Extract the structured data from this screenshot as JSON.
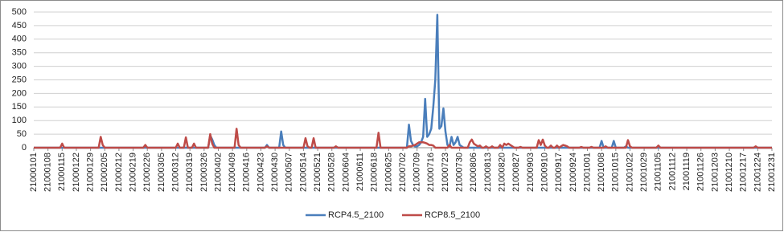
{
  "chart_data": {
    "type": "line",
    "categories": [
      "21000101",
      null,
      null,
      null,
      null,
      null,
      null,
      "21000108",
      null,
      null,
      null,
      null,
      null,
      null,
      "21000115",
      null,
      null,
      null,
      null,
      null,
      null,
      "21000122",
      null,
      null,
      null,
      null,
      null,
      null,
      "21000129",
      null,
      null,
      null,
      null,
      null,
      null,
      "21000205",
      null,
      null,
      null,
      null,
      null,
      null,
      "21000212",
      null,
      null,
      null,
      null,
      null,
      null,
      "21000219",
      null,
      null,
      null,
      null,
      null,
      null,
      "21000226",
      null,
      null,
      null,
      null,
      null,
      null,
      "21000305",
      null,
      null,
      null,
      null,
      null,
      null,
      "21000312",
      null,
      null,
      null,
      null,
      null,
      null,
      "21000319",
      null,
      null,
      null,
      null,
      null,
      null,
      "21000326",
      null,
      null,
      null,
      null,
      null,
      null,
      "21000402",
      null,
      null,
      null,
      null,
      null,
      null,
      "21000409",
      null,
      null,
      null,
      null,
      null,
      null,
      "21000416",
      null,
      null,
      null,
      null,
      null,
      null,
      "21000423",
      null,
      null,
      null,
      null,
      null,
      null,
      "21000430",
      null,
      null,
      null,
      null,
      null,
      null,
      "21000507",
      null,
      null,
      null,
      null,
      null,
      null,
      "21000514",
      null,
      null,
      null,
      null,
      null,
      null,
      "21000521",
      null,
      null,
      null,
      null,
      null,
      null,
      "21000528",
      null,
      null,
      null,
      null,
      null,
      null,
      "21000604",
      null,
      null,
      null,
      null,
      null,
      null,
      "21000611",
      null,
      null,
      null,
      null,
      null,
      null,
      "21000618",
      null,
      null,
      null,
      null,
      null,
      null,
      "21000625",
      null,
      null,
      null,
      null,
      null,
      null,
      "21000702",
      null,
      null,
      null,
      null,
      null,
      null,
      "21000709",
      null,
      null,
      null,
      null,
      null,
      null,
      "21000716",
      null,
      null,
      null,
      null,
      null,
      null,
      "21000723",
      null,
      null,
      null,
      null,
      null,
      null,
      "21000730",
      null,
      null,
      null,
      null,
      null,
      null,
      "21000806",
      null,
      null,
      null,
      null,
      null,
      null,
      "21000813",
      null,
      null,
      null,
      null,
      null,
      null,
      "21000820",
      null,
      null,
      null,
      null,
      null,
      null,
      "21000827",
      null,
      null,
      null,
      null,
      null,
      null,
      "21000903",
      null,
      null,
      null,
      null,
      null,
      null,
      "21000910",
      null,
      null,
      null,
      null,
      null,
      null,
      "21000917",
      null,
      null,
      null,
      null,
      null,
      null,
      "21000924",
      null,
      null,
      null,
      null,
      null,
      null,
      "21001001",
      null,
      null,
      null,
      null,
      null,
      null,
      "21001008",
      null,
      null,
      null,
      null,
      null,
      null,
      "21001015",
      null,
      null,
      null,
      null,
      null,
      null,
      "21001022",
      null,
      null,
      null,
      null,
      null,
      null,
      "21001029",
      null,
      null,
      null,
      null,
      null,
      null,
      "21001105",
      null,
      null,
      null,
      null,
      null,
      null,
      "21001112",
      null,
      null,
      null,
      null,
      null,
      null,
      "21001119",
      null,
      null,
      null,
      null,
      null,
      null,
      "21001126",
      null,
      null,
      null,
      null,
      null,
      null,
      "21001203",
      null,
      null,
      null,
      null,
      null,
      null,
      "21001210",
      null,
      null,
      null,
      null,
      null,
      null,
      "21001217",
      null,
      null,
      null,
      null,
      null,
      null,
      "21001224",
      null,
      null,
      null,
      null,
      null,
      null,
      "21001231"
    ],
    "series": [
      {
        "name": "RCP4.5_2100",
        "color": "#4a7ebb",
        "values": [
          0,
          0,
          0,
          0,
          0,
          0,
          0,
          0,
          0,
          0,
          0,
          0,
          0,
          0,
          0,
          0,
          0,
          0,
          0,
          0,
          0,
          0,
          0,
          0,
          0,
          0,
          0,
          0,
          0,
          0,
          0,
          0,
          0,
          0,
          0,
          0,
          0,
          0,
          0,
          0,
          0,
          0,
          0,
          0,
          0,
          0,
          0,
          0,
          0,
          0,
          0,
          0,
          0,
          0,
          0,
          0,
          0,
          0,
          0,
          0,
          0,
          0,
          0,
          0,
          0,
          0,
          0,
          0,
          0,
          0,
          0,
          0,
          0,
          0,
          0,
          0,
          0,
          0,
          0,
          0,
          0,
          0,
          0,
          0,
          0,
          0,
          0,
          45,
          30,
          10,
          0,
          0,
          0,
          0,
          0,
          0,
          0,
          0,
          0,
          0,
          0,
          0,
          0,
          0,
          0,
          0,
          0,
          0,
          0,
          0,
          0,
          0,
          0,
          0,
          0,
          10,
          0,
          0,
          0,
          0,
          0,
          0,
          60,
          10,
          0,
          0,
          0,
          0,
          0,
          0,
          0,
          0,
          0,
          0,
          0,
          0,
          0,
          0,
          0,
          0,
          0,
          0,
          0,
          0,
          0,
          0,
          0,
          0,
          0,
          0,
          0,
          0,
          0,
          0,
          0,
          0,
          0,
          0,
          0,
          0,
          0,
          0,
          0,
          0,
          0,
          0,
          0,
          0,
          0,
          0,
          0,
          0,
          0,
          0,
          0,
          0,
          0,
          0,
          0,
          0,
          0,
          0,
          0,
          0,
          0,
          85,
          25,
          10,
          5,
          5,
          10,
          20,
          40,
          180,
          40,
          50,
          70,
          150,
          250,
          490,
          70,
          80,
          145,
          60,
          10,
          5,
          40,
          10,
          20,
          40,
          10,
          5,
          0,
          0,
          0,
          0,
          0,
          0,
          0,
          0,
          0,
          0,
          0,
          0,
          0,
          0,
          0,
          0,
          0,
          0,
          0,
          0,
          0,
          0,
          0,
          0,
          0,
          0,
          0,
          0,
          0,
          0,
          0,
          0,
          0,
          0,
          0,
          0,
          0,
          0,
          0,
          0,
          0,
          0,
          0,
          0,
          0,
          0,
          0,
          0,
          0,
          0,
          0,
          0,
          0,
          0,
          0,
          0,
          0,
          0,
          0,
          0,
          0,
          0,
          0,
          0,
          0,
          0,
          0,
          0,
          25,
          0,
          0,
          0,
          0,
          0,
          25,
          0,
          0,
          0,
          0,
          0,
          5,
          0,
          0,
          0,
          0,
          0,
          0,
          0,
          0,
          0,
          0,
          0,
          0,
          0,
          0,
          0,
          0,
          0,
          0,
          0,
          0,
          0,
          0,
          0,
          0,
          0,
          0,
          0,
          0,
          0,
          0,
          0,
          0,
          0,
          0,
          0,
          0,
          0,
          0,
          0,
          0,
          0,
          0,
          0,
          0,
          0,
          0,
          0,
          0,
          0,
          0,
          0,
          0,
          0,
          0,
          0,
          0,
          0,
          0,
          0,
          0,
          0,
          0,
          0,
          0,
          0,
          0,
          0,
          0,
          0,
          0,
          0,
          0
        ]
      },
      {
        "name": "RCP8.5_2100",
        "color": "#be4b48",
        "values": [
          0,
          0,
          0,
          0,
          0,
          0,
          0,
          0,
          0,
          0,
          0,
          0,
          0,
          0,
          15,
          0,
          0,
          0,
          0,
          0,
          0,
          0,
          0,
          0,
          0,
          0,
          0,
          0,
          0,
          0,
          0,
          0,
          0,
          40,
          10,
          0,
          0,
          0,
          0,
          0,
          0,
          0,
          0,
          0,
          0,
          0,
          0,
          0,
          0,
          0,
          0,
          0,
          0,
          0,
          0,
          10,
          0,
          0,
          0,
          0,
          0,
          0,
          0,
          0,
          0,
          0,
          0,
          0,
          0,
          0,
          0,
          15,
          0,
          0,
          0,
          38,
          0,
          0,
          0,
          15,
          0,
          0,
          0,
          0,
          0,
          0,
          0,
          50,
          15,
          0,
          0,
          0,
          0,
          0,
          0,
          0,
          0,
          0,
          0,
          0,
          70,
          10,
          0,
          0,
          0,
          0,
          0,
          0,
          0,
          0,
          0,
          0,
          0,
          0,
          0,
          5,
          0,
          0,
          0,
          0,
          0,
          0,
          0,
          0,
          0,
          0,
          0,
          0,
          0,
          0,
          0,
          0,
          0,
          0,
          35,
          5,
          0,
          0,
          35,
          0,
          0,
          0,
          0,
          0,
          0,
          0,
          0,
          0,
          0,
          5,
          0,
          0,
          0,
          0,
          0,
          0,
          0,
          0,
          0,
          0,
          0,
          0,
          0,
          0,
          0,
          0,
          0,
          0,
          0,
          0,
          55,
          0,
          0,
          0,
          0,
          0,
          0,
          0,
          0,
          0,
          0,
          0,
          0,
          0,
          0,
          5,
          5,
          8,
          10,
          15,
          20,
          20,
          20,
          18,
          15,
          10,
          10,
          8,
          0,
          0,
          0,
          0,
          0,
          0,
          0,
          10,
          0,
          0,
          0,
          0,
          0,
          0,
          0,
          0,
          0,
          20,
          30,
          15,
          10,
          5,
          8,
          0,
          0,
          5,
          0,
          0,
          5,
          0,
          0,
          0,
          10,
          0,
          15,
          10,
          15,
          10,
          5,
          0,
          0,
          0,
          3,
          0,
          0,
          0,
          0,
          0,
          0,
          0,
          0,
          28,
          10,
          30,
          8,
          0,
          0,
          8,
          0,
          0,
          8,
          0,
          5,
          10,
          8,
          5,
          0,
          0,
          0,
          0,
          0,
          0,
          3,
          0,
          0,
          0,
          0,
          3,
          0,
          0,
          0,
          0,
          0,
          0,
          5,
          0,
          0,
          0,
          0,
          0,
          0,
          0,
          0,
          0,
          0,
          28,
          5,
          0,
          0,
          0,
          0,
          0,
          0,
          0,
          0,
          0,
          0,
          0,
          0,
          0,
          8,
          0,
          0,
          0,
          0,
          0,
          0,
          0,
          0,
          0,
          0,
          0,
          0,
          0,
          0,
          0,
          0,
          0,
          0,
          0,
          0,
          0,
          0,
          0,
          0,
          0,
          0,
          0,
          0,
          0,
          0,
          0,
          0,
          0,
          0,
          0,
          0,
          0,
          0,
          0,
          0,
          0,
          0,
          0,
          0,
          0,
          0,
          0,
          5,
          0,
          0,
          0,
          0,
          0,
          0,
          0,
          0
        ]
      }
    ],
    "ylim": [
      0,
      500
    ],
    "yticks": [
      0,
      50,
      100,
      150,
      200,
      250,
      300,
      350,
      400,
      450,
      500
    ],
    "grid": true,
    "legend": "bottom"
  }
}
